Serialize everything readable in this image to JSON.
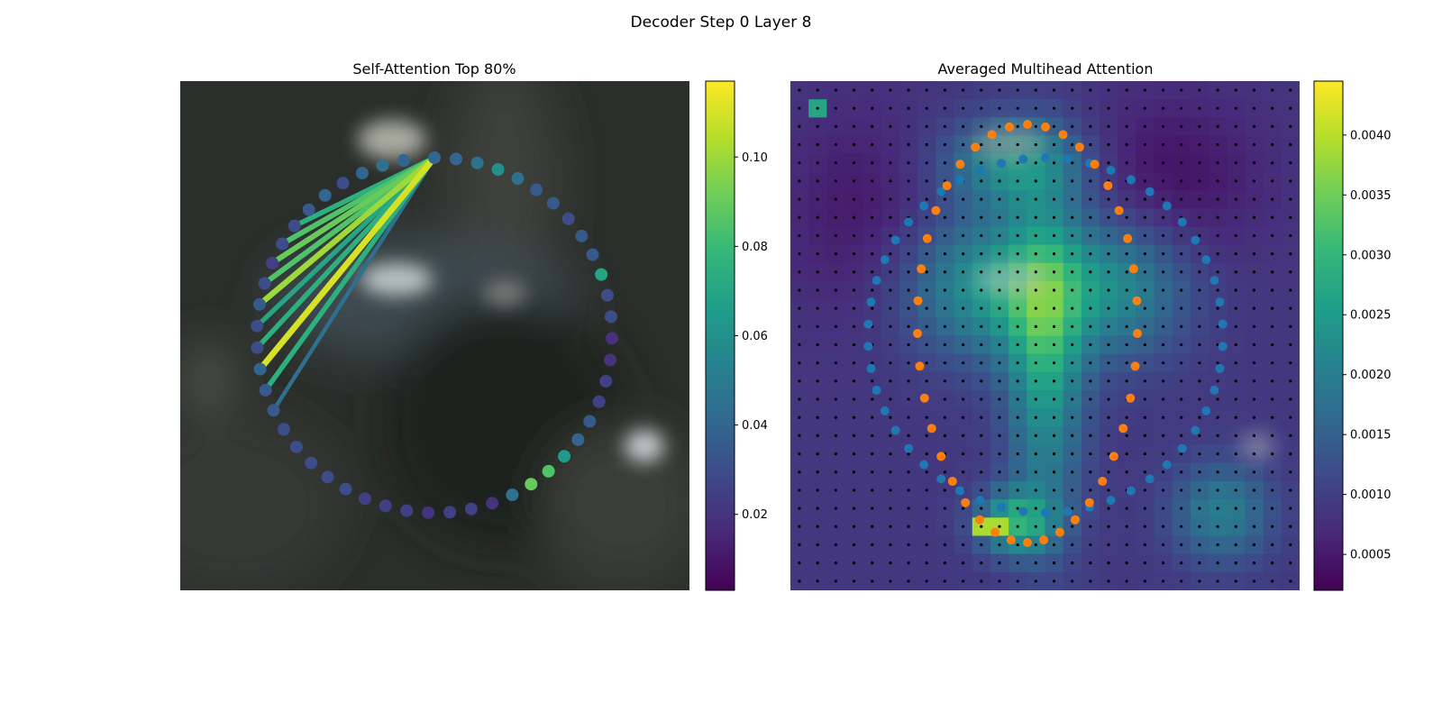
{
  "figure": {
    "title": "Decoder Step 0 Layer 8"
  },
  "colors": {
    "viridis": [
      "#440154",
      "#482878",
      "#3e4989",
      "#31688e",
      "#26828e",
      "#1f9e89",
      "#35b779",
      "#6ece58",
      "#b5de2b",
      "#fde725"
    ],
    "blue_points": "#1f77b4",
    "orange_points": "#ff7f0e",
    "grid_dots": "#000000"
  },
  "chart_data": [
    {
      "type": "scatter",
      "title": "Self-Attention Top 80%",
      "description_of_background": "blurred dark photo",
      "points": [
        {
          "index": 0,
          "angle_deg": -90,
          "value": 0.04
        },
        {
          "index": 1,
          "angle_deg": -83,
          "value": 0.04
        },
        {
          "index": 2,
          "angle_deg": -76,
          "value": 0.045
        },
        {
          "index": 3,
          "angle_deg": -69,
          "value": 0.06
        },
        {
          "index": 4,
          "angle_deg": -62,
          "value": 0.045
        },
        {
          "index": 5,
          "angle_deg": -55,
          "value": 0.035
        },
        {
          "index": 6,
          "angle_deg": -48,
          "value": 0.035
        },
        {
          "index": 7,
          "angle_deg": -41,
          "value": 0.03
        },
        {
          "index": 8,
          "angle_deg": -34,
          "value": 0.035
        },
        {
          "index": 9,
          "angle_deg": -27,
          "value": 0.035
        },
        {
          "index": 10,
          "angle_deg": -20,
          "value": 0.07
        },
        {
          "index": 11,
          "angle_deg": -13,
          "value": 0.03
        },
        {
          "index": 12,
          "angle_deg": -6,
          "value": 0.03
        },
        {
          "index": 13,
          "angle_deg": 1,
          "value": 0.02
        },
        {
          "index": 14,
          "angle_deg": 8,
          "value": 0.02
        },
        {
          "index": 15,
          "angle_deg": 15,
          "value": 0.025
        },
        {
          "index": 16,
          "angle_deg": 22,
          "value": 0.025
        },
        {
          "index": 17,
          "angle_deg": 29,
          "value": 0.035
        },
        {
          "index": 18,
          "angle_deg": 36,
          "value": 0.04
        },
        {
          "index": 19,
          "angle_deg": 43,
          "value": 0.065
        },
        {
          "index": 20,
          "angle_deg": 50,
          "value": 0.085
        },
        {
          "index": 21,
          "angle_deg": 57,
          "value": 0.09
        },
        {
          "index": 22,
          "angle_deg": 64,
          "value": 0.045
        },
        {
          "index": 23,
          "angle_deg": 71,
          "value": 0.02
        },
        {
          "index": 24,
          "angle_deg": 78,
          "value": 0.025
        },
        {
          "index": 25,
          "angle_deg": 85,
          "value": 0.025
        },
        {
          "index": 26,
          "angle_deg": 92,
          "value": 0.02
        },
        {
          "index": 27,
          "angle_deg": 99,
          "value": 0.025
        },
        {
          "index": 28,
          "angle_deg": 106,
          "value": 0.025
        },
        {
          "index": 29,
          "angle_deg": 113,
          "value": 0.025
        },
        {
          "index": 30,
          "angle_deg": 120,
          "value": 0.03
        },
        {
          "index": 31,
          "angle_deg": 127,
          "value": 0.03
        },
        {
          "index": 32,
          "angle_deg": 134,
          "value": 0.03
        },
        {
          "index": 33,
          "angle_deg": 141,
          "value": 0.03
        },
        {
          "index": 34,
          "angle_deg": 148,
          "value": 0.03
        },
        {
          "index": 35,
          "angle_deg": 155,
          "value": 0.035
        },
        {
          "index": 36,
          "angle_deg": 162,
          "value": 0.035
        },
        {
          "index": 37,
          "angle_deg": 169,
          "value": 0.04
        },
        {
          "index": 38,
          "angle_deg": 176,
          "value": 0.03
        },
        {
          "index": 39,
          "angle_deg": 183,
          "value": 0.03
        },
        {
          "index": 40,
          "angle_deg": 190,
          "value": 0.035
        },
        {
          "index": 41,
          "angle_deg": 197,
          "value": 0.03
        },
        {
          "index": 42,
          "angle_deg": 204,
          "value": 0.025
        },
        {
          "index": 43,
          "angle_deg": 211,
          "value": 0.03
        },
        {
          "index": 44,
          "angle_deg": 218,
          "value": 0.03
        },
        {
          "index": 45,
          "angle_deg": 225,
          "value": 0.035
        },
        {
          "index": 46,
          "angle_deg": 232,
          "value": 0.04
        },
        {
          "index": 47,
          "angle_deg": 239,
          "value": 0.03
        },
        {
          "index": 48,
          "angle_deg": 246,
          "value": 0.04
        },
        {
          "index": 49,
          "angle_deg": 253,
          "value": 0.045
        },
        {
          "index": 50,
          "angle_deg": 260,
          "value": 0.04
        }
      ],
      "attention_source_index": 0,
      "attention_links": [
        {
          "to": 44,
          "value": 0.075
        },
        {
          "to": 43,
          "value": 0.085
        },
        {
          "to": 42,
          "value": 0.09
        },
        {
          "to": 41,
          "value": 0.085
        },
        {
          "to": 40,
          "value": 0.1
        },
        {
          "to": 39,
          "value": 0.07
        },
        {
          "to": 38,
          "value": 0.075
        },
        {
          "to": 37,
          "value": 0.11
        },
        {
          "to": 36,
          "value": 0.075
        },
        {
          "to": 35,
          "value": 0.045
        }
      ],
      "colorbar": {
        "min": 0.003,
        "max": 0.117,
        "ticks": [
          0.02,
          0.04,
          0.06,
          0.08,
          0.1
        ],
        "tick_labels": [
          "0.02",
          "0.04",
          "0.06",
          "0.08",
          "0.10"
        ]
      }
    },
    {
      "type": "heatmap",
      "title": "Averaged Multihead Attention",
      "grid_size": [
        28,
        28
      ],
      "colorbar": {
        "min": 0.0002,
        "max": 0.00445,
        "ticks": [
          0.0005,
          0.001,
          0.0015,
          0.002,
          0.0025,
          0.003,
          0.0035,
          0.004
        ],
        "tick_labels": [
          "0.0005",
          "0.0010",
          "0.0015",
          "0.0020",
          "0.0025",
          "0.0030",
          "0.0035",
          "0.0040"
        ]
      },
      "overlay_series": [
        {
          "color_key": "blue_points",
          "shape": "ellipse"
        },
        {
          "color_key": "orange_points",
          "shape": "ring"
        }
      ]
    }
  ]
}
